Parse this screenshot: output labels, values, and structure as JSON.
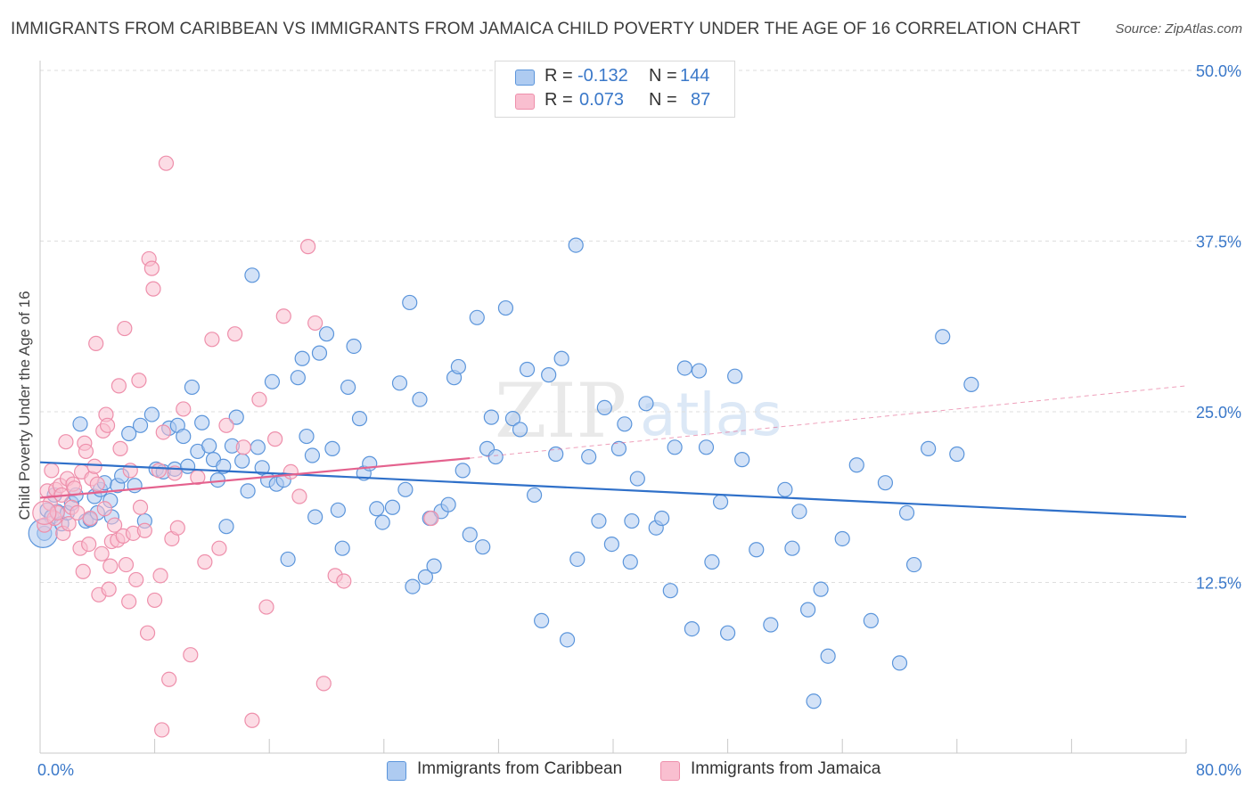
{
  "title": "IMMIGRANTS FROM CARIBBEAN VS IMMIGRANTS FROM JAMAICA CHILD POVERTY UNDER THE AGE OF 16 CORRELATION CHART",
  "source": "Source: ZipAtlas.com",
  "watermark": {
    "zip": "ZIP",
    "atlas": "atlas"
  },
  "stats": [
    {
      "r_label": "R =",
      "r": "-0.132",
      "n_label": "N =",
      "n": "144",
      "color": "#aecbf1"
    },
    {
      "r_label": "R =",
      "r": "0.073",
      "n_label": "N =",
      "n": "87",
      "color": "#f9bfd0"
    }
  ],
  "legend": [
    {
      "label": "Immigrants from Caribbean",
      "color": "#aecbf1"
    },
    {
      "label": "Immigrants from Jamaica",
      "color": "#f9bfd0"
    }
  ],
  "chart_data": {
    "type": "scatter",
    "title": "IMMIGRANTS FROM CARIBBEAN VS IMMIGRANTS FROM JAMAICA CHILD POVERTY UNDER THE AGE OF 16 CORRELATION CHART",
    "xlabel": "",
    "ylabel": "Child Poverty Under the Age of 16",
    "xlim": [
      0,
      80
    ],
    "ylim": [
      0,
      50
    ],
    "x_tick_labels": [
      "0.0%",
      "80.0%"
    ],
    "y_ticks": [
      12.5,
      25.0,
      37.5,
      50.0
    ],
    "y_tick_labels": [
      "12.5%",
      "25.0%",
      "37.5%",
      "50.0%"
    ],
    "grid": true,
    "series": [
      {
        "name": "Immigrants from Caribbean",
        "color": "#5b95db",
        "fill": "#aecbf1",
        "trend": {
          "x": [
            0,
            80
          ],
          "y": [
            21.3,
            17.3
          ],
          "style": "solid",
          "color": "#2f70c9"
        },
        "points": [
          [
            0.3,
            16.1
          ],
          [
            0.5,
            17.8
          ],
          [
            0.8,
            17.3
          ],
          [
            1.0,
            18.9
          ],
          [
            1.2,
            17.7
          ],
          [
            1.5,
            16.8
          ],
          [
            1.9,
            17.6
          ],
          [
            2.2,
            18.3
          ],
          [
            2.5,
            18.9
          ],
          [
            2.8,
            24.1
          ],
          [
            3.2,
            17.0
          ],
          [
            3.5,
            17.1
          ],
          [
            3.8,
            18.8
          ],
          [
            4.0,
            17.6
          ],
          [
            4.2,
            19.3
          ],
          [
            4.5,
            19.8
          ],
          [
            4.9,
            18.5
          ],
          [
            5.0,
            17.3
          ],
          [
            5.4,
            19.6
          ],
          [
            5.7,
            20.3
          ],
          [
            6.2,
            23.4
          ],
          [
            6.6,
            19.6
          ],
          [
            7.0,
            24.0
          ],
          [
            7.3,
            17.0
          ],
          [
            7.8,
            24.8
          ],
          [
            8.1,
            20.8
          ],
          [
            8.6,
            20.6
          ],
          [
            9.0,
            23.8
          ],
          [
            9.4,
            20.8
          ],
          [
            9.6,
            24.0
          ],
          [
            10.0,
            23.2
          ],
          [
            10.3,
            21.0
          ],
          [
            10.6,
            26.8
          ],
          [
            11.0,
            22.1
          ],
          [
            11.3,
            24.2
          ],
          [
            11.8,
            22.5
          ],
          [
            12.1,
            21.5
          ],
          [
            12.4,
            20.0
          ],
          [
            12.8,
            21.0
          ],
          [
            13.0,
            16.6
          ],
          [
            13.4,
            22.5
          ],
          [
            13.7,
            24.6
          ],
          [
            14.1,
            21.4
          ],
          [
            14.5,
            19.2
          ],
          [
            14.8,
            35.0
          ],
          [
            15.2,
            22.4
          ],
          [
            15.5,
            20.9
          ],
          [
            15.9,
            20.0
          ],
          [
            16.2,
            27.2
          ],
          [
            16.5,
            19.7
          ],
          [
            17.0,
            20.0
          ],
          [
            17.3,
            14.2
          ],
          [
            18.0,
            27.5
          ],
          [
            18.3,
            28.9
          ],
          [
            18.6,
            23.2
          ],
          [
            19.0,
            21.8
          ],
          [
            19.2,
            17.3
          ],
          [
            19.5,
            29.3
          ],
          [
            20.0,
            30.7
          ],
          [
            20.4,
            22.3
          ],
          [
            20.8,
            17.8
          ],
          [
            21.1,
            15.0
          ],
          [
            21.5,
            26.8
          ],
          [
            21.9,
            29.8
          ],
          [
            22.3,
            24.5
          ],
          [
            22.6,
            20.5
          ],
          [
            23.0,
            21.2
          ],
          [
            23.5,
            17.9
          ],
          [
            23.9,
            16.9
          ],
          [
            24.6,
            18.0
          ],
          [
            25.1,
            27.1
          ],
          [
            25.5,
            19.3
          ],
          [
            25.8,
            33.0
          ],
          [
            26.0,
            12.2
          ],
          [
            26.5,
            25.9
          ],
          [
            26.9,
            12.9
          ],
          [
            27.2,
            17.2
          ],
          [
            27.5,
            13.7
          ],
          [
            28.0,
            17.7
          ],
          [
            28.5,
            18.2
          ],
          [
            28.9,
            27.5
          ],
          [
            29.2,
            28.3
          ],
          [
            29.5,
            20.7
          ],
          [
            30.0,
            16.0
          ],
          [
            30.5,
            31.9
          ],
          [
            30.9,
            15.1
          ],
          [
            31.2,
            22.3
          ],
          [
            31.5,
            24.6
          ],
          [
            31.8,
            21.7
          ],
          [
            32.5,
            32.6
          ],
          [
            33.0,
            24.5
          ],
          [
            33.5,
            23.7
          ],
          [
            34.0,
            28.1
          ],
          [
            34.5,
            18.9
          ],
          [
            35.0,
            9.7
          ],
          [
            35.5,
            27.7
          ],
          [
            36.0,
            21.9
          ],
          [
            36.4,
            28.9
          ],
          [
            36.8,
            8.3
          ],
          [
            37.5,
            14.2
          ],
          [
            38.3,
            21.7
          ],
          [
            39.0,
            17.0
          ],
          [
            39.4,
            25.3
          ],
          [
            39.9,
            15.3
          ],
          [
            40.4,
            22.3
          ],
          [
            40.8,
            24.1
          ],
          [
            41.3,
            17.0
          ],
          [
            41.7,
            20.1
          ],
          [
            42.3,
            25.6
          ],
          [
            43.0,
            16.5
          ],
          [
            43.4,
            17.2
          ],
          [
            44.0,
            11.9
          ],
          [
            44.3,
            22.4
          ],
          [
            45.0,
            28.2
          ],
          [
            45.5,
            9.1
          ],
          [
            46.0,
            28.0
          ],
          [
            46.5,
            22.4
          ],
          [
            46.9,
            14.0
          ],
          [
            47.5,
            18.4
          ],
          [
            48.0,
            8.8
          ],
          [
            48.5,
            27.6
          ],
          [
            49.0,
            21.5
          ],
          [
            50.0,
            14.9
          ],
          [
            51.0,
            9.4
          ],
          [
            52.0,
            19.3
          ],
          [
            52.5,
            15.0
          ],
          [
            53.0,
            17.7
          ],
          [
            53.6,
            10.5
          ],
          [
            54.0,
            3.8
          ],
          [
            54.5,
            12.0
          ],
          [
            55.0,
            7.1
          ],
          [
            56.0,
            15.7
          ],
          [
            57.0,
            21.1
          ],
          [
            58.0,
            9.7
          ],
          [
            59.0,
            19.8
          ],
          [
            60.0,
            6.6
          ],
          [
            60.5,
            17.6
          ],
          [
            61.0,
            13.8
          ],
          [
            62.0,
            22.3
          ],
          [
            63.0,
            30.5
          ],
          [
            64.0,
            21.9
          ],
          [
            65.0,
            27.0
          ],
          [
            37.4,
            37.2
          ],
          [
            41.2,
            14.0
          ]
        ]
      },
      {
        "name": "Immigrants from Jamaica",
        "color": "#ee8fab",
        "fill": "#f9bfd0",
        "trend": {
          "x": [
            0,
            30
          ],
          "y": [
            18.7,
            21.6
          ],
          "style": "solid",
          "color": "#e4628e",
          "ext": {
            "x": [
              30,
              80
            ],
            "y": [
              21.6,
              26.9
            ],
            "style": "dashed"
          }
        },
        "points": [
          [
            0.3,
            16.7
          ],
          [
            0.5,
            19.2
          ],
          [
            0.7,
            18.3
          ],
          [
            0.8,
            20.7
          ],
          [
            1.0,
            17.2
          ],
          [
            1.1,
            19.3
          ],
          [
            1.2,
            17.6
          ],
          [
            1.4,
            19.6
          ],
          [
            1.5,
            18.9
          ],
          [
            1.6,
            16.1
          ],
          [
            1.8,
            22.8
          ],
          [
            1.9,
            20.1
          ],
          [
            2.0,
            16.8
          ],
          [
            2.2,
            18.0
          ],
          [
            2.3,
            19.7
          ],
          [
            2.4,
            19.4
          ],
          [
            2.6,
            17.6
          ],
          [
            2.8,
            15.0
          ],
          [
            2.9,
            20.6
          ],
          [
            3.0,
            13.3
          ],
          [
            3.1,
            22.7
          ],
          [
            3.2,
            22.1
          ],
          [
            3.4,
            15.3
          ],
          [
            3.5,
            17.2
          ],
          [
            3.6,
            20.1
          ],
          [
            3.8,
            21.0
          ],
          [
            3.9,
            30.0
          ],
          [
            4.0,
            19.7
          ],
          [
            4.1,
            11.6
          ],
          [
            4.3,
            14.6
          ],
          [
            4.4,
            23.6
          ],
          [
            4.5,
            17.9
          ],
          [
            4.6,
            24.8
          ],
          [
            4.7,
            24.0
          ],
          [
            4.8,
            12.0
          ],
          [
            4.9,
            13.7
          ],
          [
            5.0,
            15.5
          ],
          [
            5.2,
            16.7
          ],
          [
            5.4,
            15.6
          ],
          [
            5.5,
            26.9
          ],
          [
            5.6,
            22.3
          ],
          [
            5.8,
            15.9
          ],
          [
            5.9,
            31.1
          ],
          [
            6.0,
            13.8
          ],
          [
            6.2,
            11.1
          ],
          [
            6.3,
            20.7
          ],
          [
            6.5,
            16.1
          ],
          [
            6.7,
            12.7
          ],
          [
            6.9,
            27.3
          ],
          [
            7.0,
            18.0
          ],
          [
            7.3,
            16.3
          ],
          [
            7.5,
            8.8
          ],
          [
            7.6,
            36.2
          ],
          [
            7.8,
            35.5
          ],
          [
            7.9,
            34.0
          ],
          [
            8.0,
            11.2
          ],
          [
            8.3,
            20.7
          ],
          [
            8.4,
            13.0
          ],
          [
            8.5,
            1.7
          ],
          [
            8.6,
            23.5
          ],
          [
            8.8,
            43.2
          ],
          [
            9.0,
            5.4
          ],
          [
            9.2,
            15.7
          ],
          [
            9.4,
            20.5
          ],
          [
            9.6,
            16.5
          ],
          [
            10.0,
            25.2
          ],
          [
            10.5,
            7.2
          ],
          [
            11.0,
            20.2
          ],
          [
            11.5,
            14.0
          ],
          [
            12.0,
            30.3
          ],
          [
            12.5,
            15.0
          ],
          [
            13.0,
            24.0
          ],
          [
            13.6,
            30.7
          ],
          [
            14.2,
            22.4
          ],
          [
            14.8,
            2.4
          ],
          [
            15.3,
            25.9
          ],
          [
            15.8,
            10.7
          ],
          [
            16.4,
            23.0
          ],
          [
            17.0,
            32.0
          ],
          [
            17.5,
            20.6
          ],
          [
            18.1,
            18.8
          ],
          [
            18.7,
            37.1
          ],
          [
            19.2,
            31.5
          ],
          [
            19.8,
            5.1
          ],
          [
            20.6,
            13.0
          ],
          [
            21.2,
            12.6
          ],
          [
            27.3,
            17.2
          ]
        ]
      }
    ]
  }
}
